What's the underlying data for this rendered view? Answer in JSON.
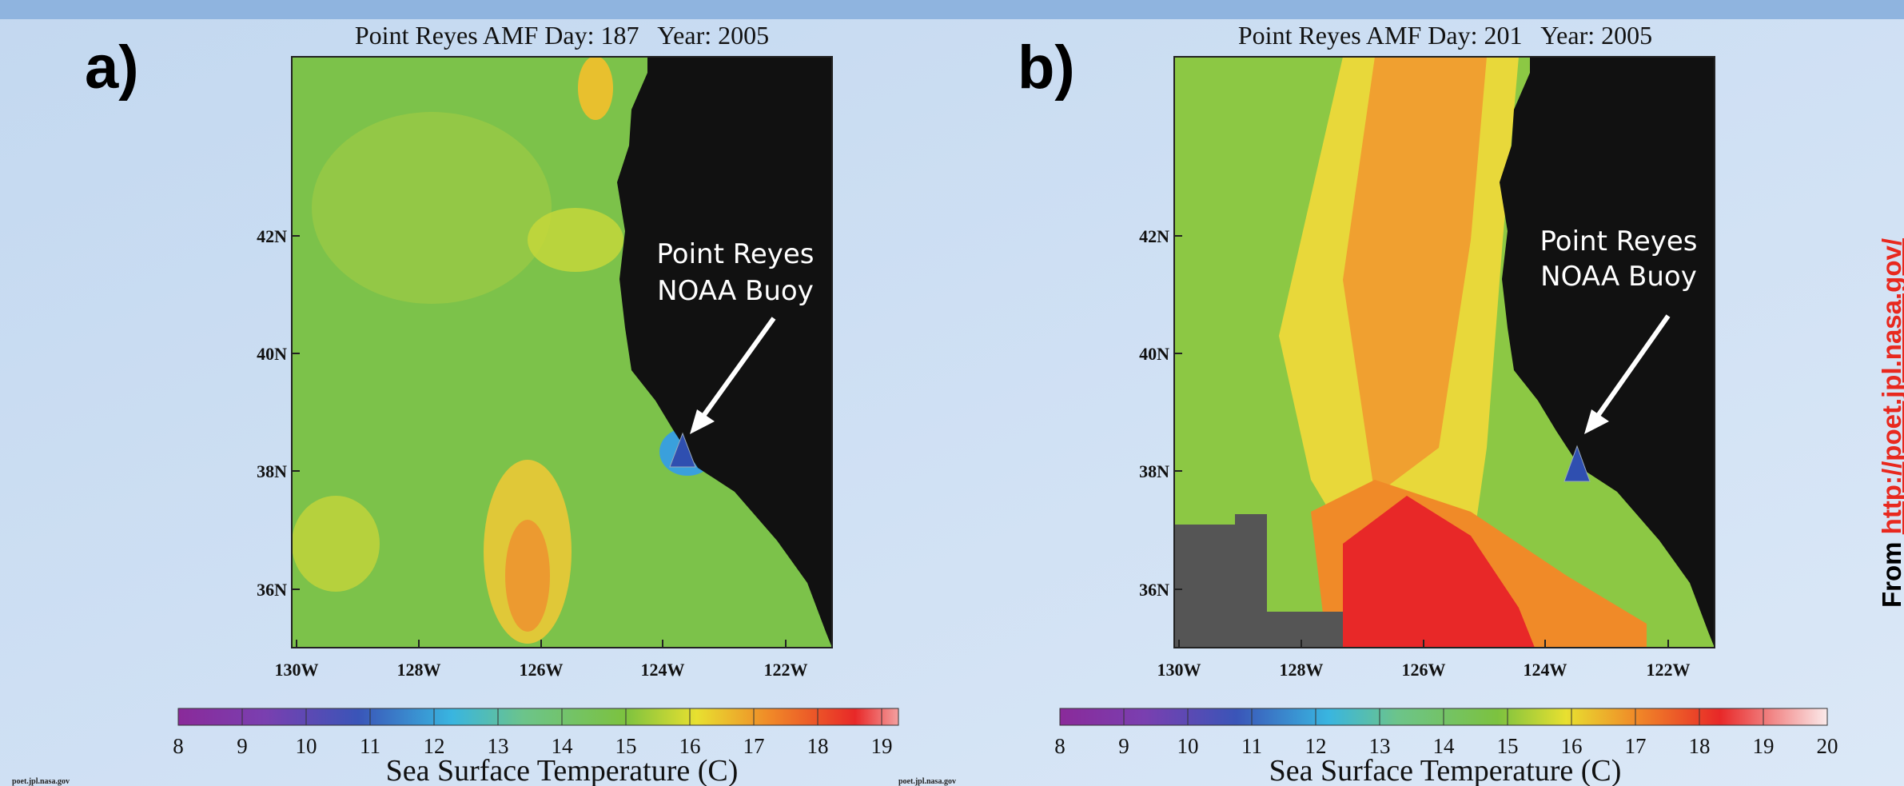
{
  "panels": [
    {
      "label": "a)",
      "title": "Point Reyes AMF Day: 187   Year: 2005",
      "lat_ticks": [
        "42N",
        "40N",
        "38N",
        "36N"
      ],
      "lon_ticks": [
        "130W",
        "128W",
        "126W",
        "124W",
        "122W"
      ],
      "annotation": [
        "Point Reyes",
        "NOAA Buoy"
      ],
      "colorbar_ticks": [
        "8",
        "9",
        "10",
        "11",
        "12",
        "13",
        "14",
        "15",
        "16",
        "17",
        "18",
        "19"
      ],
      "colorbar_label": "Sea Surface Temperature (C)",
      "credit": "poet.jpl.nasa.gov"
    },
    {
      "label": "b)",
      "title": "Point Reyes AMF Day: 201   Year: 2005",
      "lat_ticks": [
        "42N",
        "40N",
        "38N",
        "36N"
      ],
      "lon_ticks": [
        "130W",
        "128W",
        "126W",
        "124W",
        "122W"
      ],
      "annotation": [
        "Point Reyes",
        "NOAA Buoy"
      ],
      "colorbar_ticks": [
        "8",
        "9",
        "10",
        "11",
        "12",
        "13",
        "14",
        "15",
        "16",
        "17",
        "18",
        "19",
        "20"
      ],
      "colorbar_label": "Sea Surface Temperature (C)"
    }
  ],
  "side_note": {
    "prefix": "From ",
    "link": "http://poet.jpl.nasa.gov/"
  }
}
